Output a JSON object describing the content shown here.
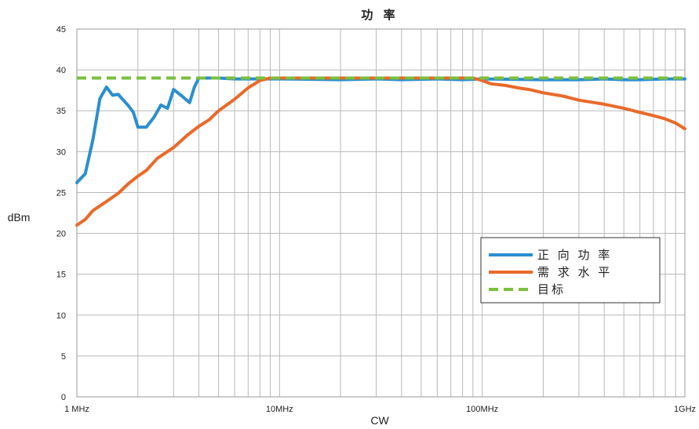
{
  "chart_data": {
    "type": "line",
    "title": "功 率",
    "xlabel": "CW",
    "ylabel": "dBm",
    "x_scale": "log",
    "xlim": [
      1,
      1000
    ],
    "ylim": [
      0,
      45
    ],
    "y_ticks": [
      0,
      5,
      10,
      15,
      20,
      25,
      30,
      35,
      40,
      45
    ],
    "x_ticks": [
      {
        "value": 1,
        "label": "1 MHz"
      },
      {
        "value": 10,
        "label": "10MHz"
      },
      {
        "value": 100,
        "label": "100MHz"
      },
      {
        "value": 1000,
        "label": "1GHz"
      }
    ],
    "grid": true,
    "legend_position": "right",
    "series": [
      {
        "name": "正 向 功 率",
        "color": "#2a8fd0",
        "dash": "solid",
        "points": [
          [
            1,
            26.2
          ],
          [
            1.1,
            27.3
          ],
          [
            1.2,
            31.5
          ],
          [
            1.3,
            36.5
          ],
          [
            1.4,
            37.9
          ],
          [
            1.5,
            36.9
          ],
          [
            1.6,
            37.0
          ],
          [
            1.8,
            35.6
          ],
          [
            1.9,
            34.8
          ],
          [
            2.0,
            33.0
          ],
          [
            2.2,
            33.0
          ],
          [
            2.4,
            34.2
          ],
          [
            2.6,
            35.7
          ],
          [
            2.8,
            35.3
          ],
          [
            3.0,
            37.6
          ],
          [
            3.3,
            36.8
          ],
          [
            3.6,
            36.0
          ],
          [
            3.8,
            37.9
          ],
          [
            4.0,
            39.0
          ],
          [
            5,
            39.0
          ],
          [
            6,
            38.9
          ],
          [
            8,
            38.9
          ],
          [
            10,
            38.9
          ],
          [
            20,
            38.8
          ],
          [
            30,
            38.9
          ],
          [
            40,
            38.8
          ],
          [
            60,
            38.9
          ],
          [
            80,
            38.8
          ],
          [
            100,
            38.9
          ],
          [
            200,
            38.8
          ],
          [
            300,
            38.8
          ],
          [
            400,
            38.9
          ],
          [
            500,
            38.8
          ],
          [
            600,
            38.8
          ],
          [
            800,
            38.9
          ],
          [
            1000,
            38.9
          ]
        ]
      },
      {
        "name": "需 求 水 平",
        "color": "#e96a2a",
        "dash": "solid",
        "points": [
          [
            1,
            21.0
          ],
          [
            1.1,
            21.7
          ],
          [
            1.2,
            22.8
          ],
          [
            1.4,
            23.9
          ],
          [
            1.6,
            24.9
          ],
          [
            1.8,
            26.1
          ],
          [
            2.0,
            27.0
          ],
          [
            2.2,
            27.7
          ],
          [
            2.5,
            29.2
          ],
          [
            3.0,
            30.5
          ],
          [
            3.5,
            32.0
          ],
          [
            4,
            33.1
          ],
          [
            4.5,
            33.9
          ],
          [
            5,
            35.0
          ],
          [
            6,
            36.4
          ],
          [
            7,
            37.8
          ],
          [
            8,
            38.7
          ],
          [
            9,
            39.0
          ],
          [
            20,
            39.0
          ],
          [
            50,
            39.0
          ],
          [
            80,
            39.0
          ],
          [
            90,
            39.0
          ],
          [
            100,
            38.7
          ],
          [
            110,
            38.3
          ],
          [
            130,
            38.1
          ],
          [
            150,
            37.8
          ],
          [
            170,
            37.6
          ],
          [
            200,
            37.2
          ],
          [
            250,
            36.8
          ],
          [
            300,
            36.3
          ],
          [
            400,
            35.8
          ],
          [
            500,
            35.3
          ],
          [
            600,
            34.8
          ],
          [
            700,
            34.4
          ],
          [
            800,
            34.0
          ],
          [
            900,
            33.5
          ],
          [
            1000,
            32.8
          ]
        ]
      },
      {
        "name": "目标",
        "color": "#7bbf3e",
        "dash": "dashed",
        "points": [
          [
            1,
            39.0
          ],
          [
            1000,
            39.0
          ]
        ]
      }
    ]
  }
}
